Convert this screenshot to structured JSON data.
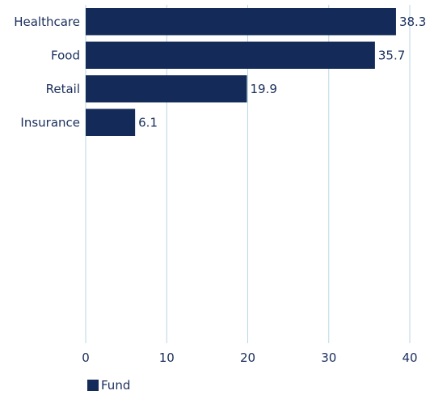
{
  "chart_data": {
    "type": "bar",
    "orientation": "horizontal",
    "categories": [
      "Healthcare",
      "Food",
      "Retail",
      "Insurance"
    ],
    "series": [
      {
        "name": "Fund",
        "values": [
          38.3,
          35.7,
          19.9,
          6.1
        ]
      }
    ],
    "value_labels": [
      "38.3",
      "35.7",
      "19.9",
      "6.1"
    ],
    "xlim": [
      0,
      40
    ],
    "x_ticks": [
      "0",
      "10",
      "20",
      "30",
      "40"
    ],
    "grid": "vertical",
    "legend_position": "bottom-left",
    "colors": {
      "bar": "#142b59",
      "grid": "#b8d7e3",
      "text": "#1a2f5c"
    }
  },
  "legend": {
    "label": "Fund"
  }
}
